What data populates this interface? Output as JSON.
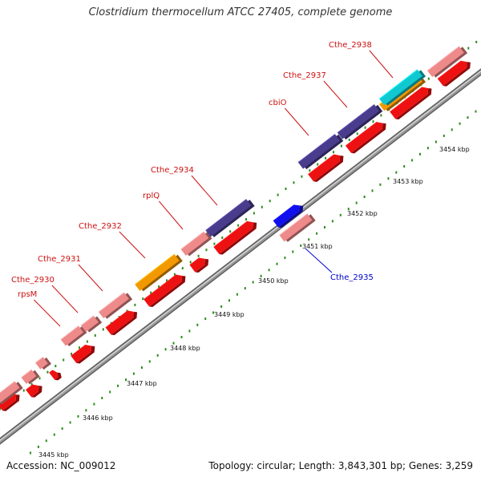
{
  "title": "Clostridium thermocellum ATCC 27405, complete genome",
  "footer": {
    "accession": "Accession: NC_009012",
    "summary": "Topology: circular; Length: 3,843,301 bp; Genes: 3,259"
  },
  "colors": {
    "backbone": "#9a9a9a",
    "backbone_edge": "#5f5f5f",
    "tick": "#2e8b1e",
    "label_forward": "#cc1111",
    "label_reverse": "#0000cc",
    "gene": "#ee1111",
    "cds_pink": "#ee8a8a",
    "cds_purple": "#4a3c8c",
    "cds_orange": "#f29800",
    "cds_cyan": "#10c8d0",
    "cds_blue": "#1010ee"
  },
  "kbp_labels": [
    "3445 kbp",
    "3446 kbp",
    "3447 kbp",
    "3448 kbp",
    "3449 kbp",
    "3450 kbp",
    "3451 kbp",
    "3452 kbp",
    "3453 kbp",
    "3454 kbp"
  ],
  "gene_labels": [
    {
      "text": "rpsM",
      "strand": "forward"
    },
    {
      "text": "Cthe_2930",
      "strand": "forward"
    },
    {
      "text": "Cthe_2931",
      "strand": "forward"
    },
    {
      "text": "Cthe_2932",
      "strand": "forward"
    },
    {
      "text": "rplQ",
      "strand": "forward"
    },
    {
      "text": "Cthe_2934",
      "strand": "forward"
    },
    {
      "text": "cbiO",
      "strand": "forward"
    },
    {
      "text": "Cthe_2937",
      "strand": "forward"
    },
    {
      "text": "Cthe_2938",
      "strand": "forward"
    },
    {
      "text": "Cthe_2935",
      "strand": "reverse"
    }
  ]
}
